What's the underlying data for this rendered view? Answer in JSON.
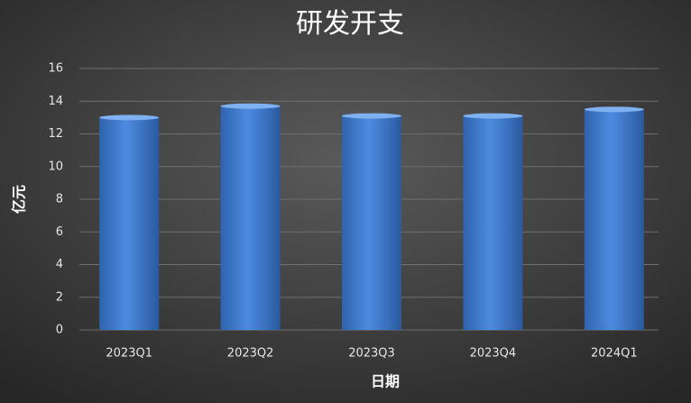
{
  "chart_data": {
    "type": "bar",
    "title": "研发开支",
    "x_label": "日期",
    "y_label": "亿元",
    "categories": [
      "2023Q1",
      "2023Q2",
      "2023Q3",
      "2023Q4",
      "2024Q1"
    ],
    "values": [
      13.0,
      13.7,
      13.1,
      13.1,
      13.5
    ],
    "color": "#4a86d6",
    "ylim": [
      0,
      16
    ],
    "yticks": [
      0,
      2,
      4,
      6,
      8,
      10,
      12,
      14,
      16
    ],
    "grid": true
  }
}
